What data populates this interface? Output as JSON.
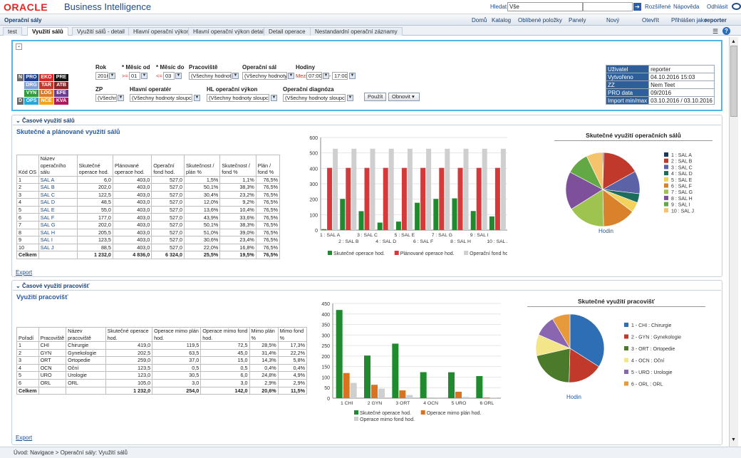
{
  "header": {
    "logo": "ORACLE",
    "product": "Business Intelligence",
    "search_label": "Hledat",
    "search_scope": "Vše",
    "advanced": "Rozšířené",
    "help": "Nápověda",
    "logout": "Odhlásit"
  },
  "nav": {
    "dashboard_title": "Operační sály",
    "items": [
      "Domů",
      "Katalog",
      "Oblíbené položky",
      "Panely",
      "Nový",
      "Otevřít",
      "Přihlášen jako"
    ],
    "user": "reporter"
  },
  "tabs": [
    "test",
    "Využití sálů",
    "Využití sálů - detail",
    "Hlavní operační výkon",
    "Hlavní operační výkon detail",
    "Detail operace",
    "Nestandardní operační záznamy"
  ],
  "active_tab": 1,
  "legend_codes": [
    [
      {
        "t": "N",
        "c": "#6a6a6a"
      },
      {
        "t": "PRO",
        "c": "#1f3f8f"
      },
      {
        "t": "EKO",
        "c": "#d62828"
      },
      {
        "t": "PRE",
        "c": "#111111"
      }
    ],
    [
      {
        "t": "",
        "c": "#ffffff"
      },
      {
        "t": "DRG",
        "c": "#7fa1d3"
      },
      {
        "t": "TAR",
        "c": "#c0392b"
      },
      {
        "t": "ATB",
        "c": "#8b2323"
      }
    ],
    [
      {
        "t": "",
        "c": "#ffffff"
      },
      {
        "t": "VYN",
        "c": "#2e9e3c"
      },
      {
        "t": "LOG",
        "c": "#e07b22"
      },
      {
        "t": "EFE",
        "c": "#6c3a8e"
      }
    ],
    [
      {
        "t": "D",
        "c": "#6a6a6a"
      },
      {
        "t": "OPS",
        "c": "#2aa7d8"
      },
      {
        "t": "NCE",
        "c": "#f2a51a"
      },
      {
        "t": "KVA",
        "c": "#b2185f"
      }
    ]
  ],
  "filters": {
    "rok": {
      "label": "Rok",
      "value": "2016"
    },
    "mesic_od": {
      "label": "* Měsíc od",
      "op": ">=",
      "value": "01"
    },
    "mesic_do": {
      "label": "* Měsíc do",
      "op": "<=",
      "value": "03"
    },
    "pracoviste": {
      "label": "Pracoviště",
      "value": "(Všechny hodnoty"
    },
    "operacni_sal": {
      "label": "Operační sál",
      "value": "(Všechny hodnoty"
    },
    "hodiny": {
      "label": "Hodiny",
      "op": "Mezi",
      "from": "07:00",
      "to": "17:00"
    },
    "zp": {
      "label": "ZP",
      "value": "(Všechny"
    },
    "hlavni_operater": {
      "label": "Hlavní operatér",
      "value": "(Všechny hodnoty sloupce)"
    },
    "hl_vykon": {
      "label": "HL operační výkon",
      "value": "(Všechny hodnoty sloupce)"
    },
    "diagnoza": {
      "label": "Operační diagnóza",
      "value": "(Všechny hodnoty sloupce)"
    },
    "apply": "Použít",
    "reset": "Obnovit"
  },
  "info": [
    [
      "Uživatel",
      "reporter"
    ],
    [
      "Vytvořeno",
      "04.10.2016 15:03"
    ],
    [
      "ZZ",
      "Nem Teet"
    ],
    [
      "PRO data",
      "09/2016"
    ],
    [
      "Import min/max",
      "03.10.2016 / 03.10.2016"
    ]
  ],
  "section1": {
    "head": "Časové využití sálů",
    "title": "Skutečné a plánované využití sálů",
    "export": "Export",
    "columns": [
      "Kód OS",
      "Název operačního sálu",
      "Skutečné operace hod.",
      "Plánované operace hod.",
      "Operační fond hod.",
      "Skutečnost / plán %",
      "Skutečnost / fond %",
      "Plán / fond %"
    ],
    "rows": [
      [
        "1",
        "SAL A",
        "6,0",
        "403,0",
        "527,0",
        "1,5%",
        "1,1%",
        "76,5%"
      ],
      [
        "2",
        "SAL B",
        "202,0",
        "403,0",
        "527,0",
        "50,1%",
        "38,3%",
        "76,5%"
      ],
      [
        "3",
        "SAL C",
        "122,5",
        "403,0",
        "527,0",
        "30,4%",
        "23,2%",
        "76,5%"
      ],
      [
        "4",
        "SAL D",
        "48,5",
        "403,0",
        "527,0",
        "12,0%",
        "9,2%",
        "76,5%"
      ],
      [
        "5",
        "SAL E",
        "55,0",
        "403,0",
        "527,0",
        "13,6%",
        "10,4%",
        "76,5%"
      ],
      [
        "6",
        "SAL F",
        "177,0",
        "403,0",
        "527,0",
        "43,9%",
        "33,6%",
        "76,5%"
      ],
      [
        "7",
        "SAL G",
        "202,0",
        "403,0",
        "527,0",
        "50,1%",
        "38,3%",
        "76,5%"
      ],
      [
        "8",
        "SAL H",
        "205,5",
        "403,0",
        "527,0",
        "51,0%",
        "39,0%",
        "76,5%"
      ],
      [
        "9",
        "SAL I",
        "123,5",
        "403,0",
        "527,0",
        "30,6%",
        "23,4%",
        "76,5%"
      ],
      [
        "10",
        "SAL J",
        "88,5",
        "403,0",
        "527,0",
        "22,0%",
        "16,8%",
        "76,5%"
      ]
    ],
    "total": [
      "Celkem",
      "",
      "1 232,0",
      "4 836,0",
      "6 324,0",
      "25,5%",
      "19,5%",
      "76,5%"
    ],
    "pie_title": "Skutečné využití operačních sálů",
    "pie_caption": "Hodin"
  },
  "section2": {
    "head": "Časové využití pracovišť",
    "title": "Využití pracovišť",
    "export": "Export",
    "columns": [
      "Pořadí",
      "Pracoviště",
      "Název pracoviště",
      "Skutečné operace hod.",
      "Operace mimo plán hod.",
      "Operace mimo fond hod.",
      "Mimo plán %",
      "Mimo fond %"
    ],
    "rows": [
      [
        "1",
        "CHI",
        "Chirurgie",
        "419,0",
        "119,5",
        "72,5",
        "28,5%",
        "17,3%"
      ],
      [
        "2",
        "GYN",
        "Gynekologie",
        "202,5",
        "63,5",
        "45,0",
        "31,4%",
        "22,2%"
      ],
      [
        "3",
        "ORT",
        "Ortopedie",
        "259,0",
        "37,0",
        "15,0",
        "14,3%",
        "5,8%"
      ],
      [
        "4",
        "OCN",
        "Oční",
        "123,5",
        "0,5",
        "0,5",
        "0,4%",
        "0,4%"
      ],
      [
        "5",
        "URO",
        "Urologie",
        "123,0",
        "30,5",
        "6,0",
        "24,8%",
        "4,9%"
      ],
      [
        "6",
        "ORL",
        "ORL",
        "105,0",
        "3,0",
        "3,0",
        "2,9%",
        "2,9%"
      ]
    ],
    "total": [
      "Celkem",
      "",
      "",
      "1 232,0",
      "254,0",
      "142,0",
      "20,6%",
      "11,5%"
    ],
    "pie_title": "Skutečné využití pracovišť",
    "pie_caption": "Hodin"
  },
  "breadcrumb": "Úvod: Navigace  >  Operační sály: Využití sálů",
  "chart_data": [
    {
      "type": "bar",
      "categories": [
        "1 : SAL A",
        "2 : SAL B",
        "3 : SAL C",
        "4 : SAL D",
        "5 : SAL E",
        "6 : SAL F",
        "7 : SAL G",
        "8 : SAL H",
        "9 : SAL I",
        "10 : SAL J"
      ],
      "series": [
        {
          "name": "Skutečné operace hod.",
          "values": [
            6,
            202,
            122.5,
            48.5,
            55,
            177,
            202,
            205.5,
            123.5,
            88.5
          ],
          "color": "#1f8a2e"
        },
        {
          "name": "Plánované operace hod.",
          "values": [
            403,
            403,
            403,
            403,
            403,
            403,
            403,
            403,
            403,
            403
          ],
          "color": "#d43a3a"
        },
        {
          "name": "Operační fond hod.",
          "values": [
            527,
            527,
            527,
            527,
            527,
            527,
            527,
            527,
            527,
            527
          ],
          "color": "#cfcfcf"
        }
      ],
      "ylim": [
        0,
        600
      ],
      "yticks": [
        0,
        100,
        200,
        300,
        400,
        500,
        600
      ]
    },
    {
      "type": "pie",
      "title": "Skutečné využití operačních sálů",
      "labels": [
        "1 : SAL A",
        "2 : SAL B",
        "3 : SAL C",
        "4 : SAL D",
        "5 : SAL E",
        "6 : SAL F",
        "7 : SAL G",
        "8 : SAL H",
        "9 : SAL I",
        "10 : SAL J"
      ],
      "values": [
        6,
        202,
        122.5,
        48.5,
        55,
        177,
        202,
        205.5,
        123.5,
        88.5
      ],
      "colors": [
        "#17375e",
        "#c0392b",
        "#5b62a6",
        "#1b6d5c",
        "#f2d15c",
        "#d9822b",
        "#9fc34f",
        "#7e4f9a",
        "#62a844",
        "#f5c36b"
      ]
    },
    {
      "type": "bar",
      "categories": [
        "1 CHI",
        "2 GYN",
        "3 ORT",
        "4 OCN",
        "5 URO",
        "6 ORL"
      ],
      "series": [
        {
          "name": "Skutečné operace hod.",
          "values": [
            419,
            202.5,
            259,
            123.5,
            123,
            105
          ],
          "color": "#1f8a2e"
        },
        {
          "name": "Operace mimo plán hod.",
          "values": [
            119.5,
            63.5,
            37,
            0.5,
            30.5,
            3
          ],
          "color": "#d9731f"
        },
        {
          "name": "Operace mimo fond hod.",
          "values": [
            72.5,
            45,
            15,
            0.5,
            6,
            3
          ],
          "color": "#cfcfcf"
        }
      ],
      "ylim": [
        0,
        450
      ],
      "yticks": [
        0,
        50,
        100,
        150,
        200,
        250,
        300,
        350,
        400,
        450
      ]
    },
    {
      "type": "pie",
      "title": "Skutečné využití pracovišť",
      "labels": [
        "1 - CHI : Chirurgie",
        "2 - GYN : Gynekologie",
        "3 - ORT : Ortopedie",
        "4 - OCN : Oční",
        "5 - URO : Urologie",
        "6 - ORL : ORL"
      ],
      "values": [
        419,
        202.5,
        259,
        123.5,
        123,
        105
      ],
      "colors": [
        "#2e6eb5",
        "#c0392b",
        "#4a7a2a",
        "#f2e58a",
        "#8a66b0",
        "#e69a3c"
      ]
    }
  ]
}
